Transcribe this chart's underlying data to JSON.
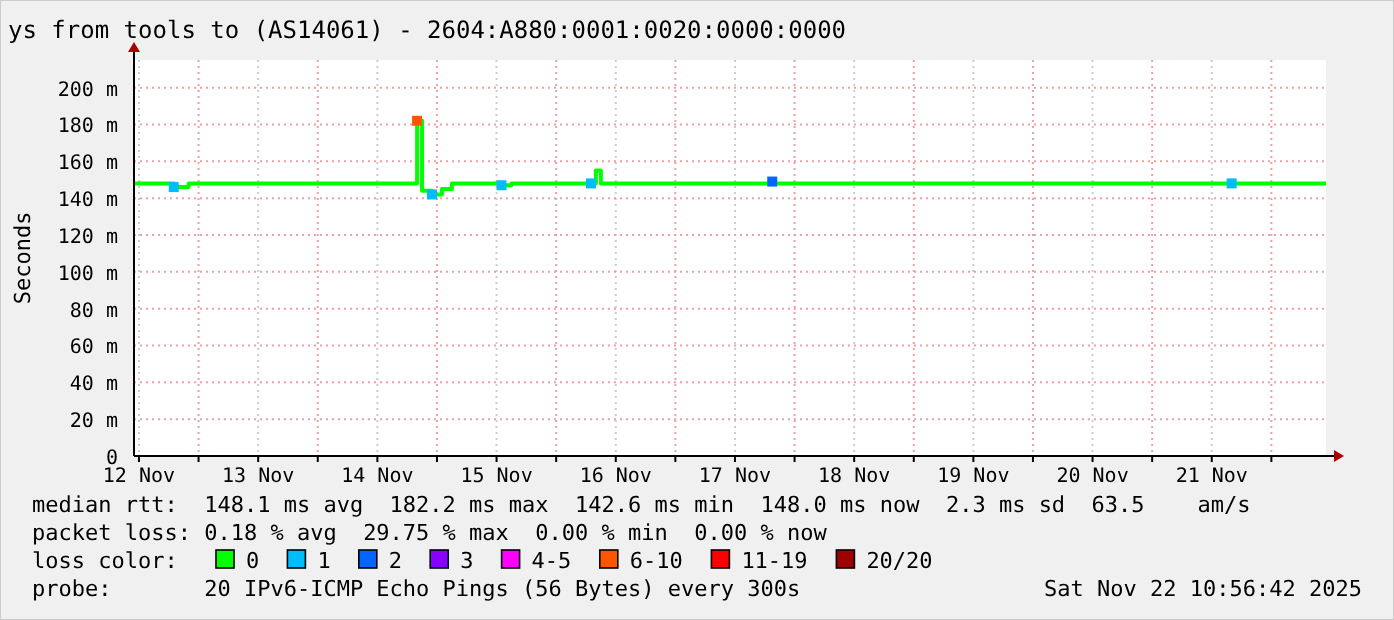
{
  "chart_data": {
    "type": "line",
    "title": "ys from tools to (AS14061) - 2604:A880:0001:0020:0000:0000",
    "ylabel": "Seconds",
    "legend_title": "loss color:",
    "xlim": [
      "2025-11-12T11:00",
      "2025-11-22T11:00"
    ],
    "xticks": [
      {
        "value": "2025-11-12T12:00",
        "label": "12 Nov"
      },
      {
        "value": "2025-11-13T00:00",
        "label": null
      },
      {
        "value": "2025-11-13T12:00",
        "label": "13 Nov"
      },
      {
        "value": "2025-11-14T00:00",
        "label": null
      },
      {
        "value": "2025-11-14T12:00",
        "label": "14 Nov"
      },
      {
        "value": "2025-11-15T00:00",
        "label": null
      },
      {
        "value": "2025-11-15T12:00",
        "label": "15 Nov"
      },
      {
        "value": "2025-11-16T00:00",
        "label": null
      },
      {
        "value": "2025-11-16T12:00",
        "label": "16 Nov"
      },
      {
        "value": "2025-11-17T00:00",
        "label": null
      },
      {
        "value": "2025-11-17T12:00",
        "label": "17 Nov"
      },
      {
        "value": "2025-11-18T00:00",
        "label": null
      },
      {
        "value": "2025-11-18T12:00",
        "label": "18 Nov"
      },
      {
        "value": "2025-11-19T00:00",
        "label": null
      },
      {
        "value": "2025-11-19T12:00",
        "label": "19 Nov"
      },
      {
        "value": "2025-11-20T00:00",
        "label": null
      },
      {
        "value": "2025-11-20T12:00",
        "label": "20 Nov"
      },
      {
        "value": "2025-11-21T00:00",
        "label": null
      },
      {
        "value": "2025-11-21T12:00",
        "label": "21 Nov"
      },
      {
        "value": "2025-11-22T00:00",
        "label": null
      }
    ],
    "ylim": [
      0,
      215
    ],
    "yticks": [
      0,
      {
        "value": 20,
        "label": "20 m"
      },
      {
        "value": 40,
        "label": "40 m"
      },
      {
        "value": 60,
        "label": "60 m"
      },
      {
        "value": 80,
        "label": "80 m"
      },
      {
        "value": 100,
        "label": "100 m"
      },
      {
        "value": 120,
        "label": "120 m"
      },
      {
        "value": 140,
        "label": "140 m"
      },
      {
        "value": 160,
        "label": "160 m"
      },
      {
        "value": 180,
        "label": "180 m"
      },
      {
        "value": 200,
        "label": "200 m"
      }
    ],
    "grid": true,
    "legend": "bottom",
    "series": [
      {
        "name": "0",
        "type": "line",
        "color": "#00ff00",
        "x": [
          "2025-11-12T11:00",
          "2025-11-12T17:00",
          "2025-11-12T19:00",
          "2025-11-12T22:00",
          "2025-11-14T19:30",
          "2025-11-14T20:00",
          "2025-11-14T21:00",
          "2025-11-14T23:00",
          "2025-11-15T01:00",
          "2025-11-15T03:00",
          "2025-11-15T11:00",
          "2025-11-15T13:00",
          "2025-11-15T15:00",
          "2025-11-16T07:00",
          "2025-11-16T08:00",
          "2025-11-16T09:00",
          "2025-11-22T11:00"
        ],
        "values": [
          148,
          148,
          146,
          148,
          148,
          182,
          144,
          142,
          145,
          148,
          148,
          147,
          148,
          148,
          155,
          148,
          148
        ]
      },
      {
        "name": "1",
        "type": "scatter",
        "marker": "square",
        "color": "#00bbff",
        "x": [
          "2025-11-12T19:00",
          "2025-11-14T23:00",
          "2025-11-15T13:00",
          "2025-11-16T07:00",
          "2025-11-21T16:00"
        ],
        "values": [
          146,
          142,
          147,
          148,
          148
        ]
      },
      {
        "name": "2",
        "type": "scatter",
        "marker": "square",
        "color": "#0066ff",
        "x": [
          "2025-11-17T19:30"
        ],
        "values": [
          149
        ]
      },
      {
        "name": "3",
        "type": "scatter",
        "color": "#8800ff"
      },
      {
        "name": "4-5",
        "type": "scatter",
        "color": "#ff00ff"
      },
      {
        "name": "6-10",
        "type": "scatter",
        "marker": "square",
        "color": "#ff5500",
        "x": [
          "2025-11-14T20:00"
        ],
        "values": [
          182
        ]
      },
      {
        "name": "11-19",
        "type": "scatter",
        "color": "#ff0000"
      },
      {
        "name": "20/20",
        "type": "scatter",
        "color": "#a10000"
      }
    ],
    "annotations": [
      "median rtt:  148.1 ms avg  182.2 ms max  142.6 ms min  148.0 ms now  2.3 ms sd  63.5    am/s",
      "packet loss: 0.18 % avg  29.75 % max  0.00 % min  0.00 % now",
      "probe:       20 IPv6-ICMP Echo Pings (56 Bytes) every 300s",
      "Sat Nov 22 10:56:42 2025"
    ]
  }
}
